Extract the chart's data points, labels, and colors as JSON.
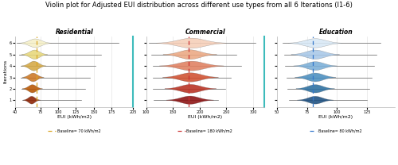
{
  "title": "Violin plot for Adjusted EUI distribution across different use types from all 6 Iterations (I1-6)",
  "title_fontsize": 6.0,
  "panels": [
    {
      "label": "Residential",
      "xlabel": "EUI (kWh/m2)",
      "baseline": 70,
      "baseline_label": "Baseline= 70 kWh/m2",
      "baseline_color": "#DAA520",
      "xlim": [
        40,
        205
      ],
      "xticks": [
        40,
        75,
        100,
        125,
        150,
        175,
        205
      ],
      "violin_colors": [
        "#F5F0C8",
        "#E8D87A",
        "#D4A843",
        "#CC7722",
        "#B85500",
        "#8B2000"
      ],
      "violin_centers": [
        68,
        67,
        66,
        65,
        64,
        63
      ],
      "violin_half_widths": [
        0.38,
        0.4,
        0.42,
        0.38,
        0.36,
        0.34
      ],
      "violin_spreads": [
        22,
        18,
        17,
        15,
        14,
        12
      ],
      "whisker_mins": [
        42,
        45,
        47,
        48,
        49,
        50
      ],
      "whisker_maxs": [
        185,
        160,
        152,
        145,
        138,
        132
      ]
    },
    {
      "label": "Commercial",
      "xlabel": "EUI (kWh/m2)",
      "baseline": 180,
      "baseline_label": "Baseline= 180 kWh/m2",
      "baseline_color": "#CC3333",
      "xlim": [
        100,
        320
      ],
      "xticks": [
        100,
        150,
        200,
        250,
        300
      ],
      "violin_colors": [
        "#F5CEB8",
        "#EBA882",
        "#E08060",
        "#D05030",
        "#B83020",
        "#8B1010"
      ],
      "violin_centers": [
        185,
        182,
        185,
        183,
        183,
        182
      ],
      "violin_half_widths": [
        0.44,
        0.42,
        0.42,
        0.4,
        0.38,
        0.36
      ],
      "violin_spreads": [
        65,
        50,
        60,
        52,
        48,
        44
      ],
      "whisker_mins": [
        105,
        110,
        112,
        112,
        113,
        114
      ],
      "whisker_maxs": [
        305,
        268,
        278,
        258,
        248,
        235
      ]
    },
    {
      "label": "Education",
      "xlabel": "EUI (kWh/m2)",
      "baseline": 80,
      "baseline_label": "Baseline= 80 kWh/m2",
      "baseline_color": "#3377CC",
      "xlim": [
        50,
        148
      ],
      "xticks": [
        50,
        75,
        100,
        125
      ],
      "violin_colors": [
        "#D8E8F5",
        "#A8C8E8",
        "#7AAED8",
        "#4A8EC0",
        "#2A6EA0",
        "#1A4E80"
      ],
      "violin_centers": [
        82,
        82,
        82,
        82,
        82,
        82
      ],
      "violin_half_widths": [
        0.4,
        0.4,
        0.38,
        0.38,
        0.36,
        0.34
      ],
      "violin_spreads": [
        22,
        20,
        18,
        17,
        16,
        15
      ],
      "whisker_mins": [
        55,
        56,
        57,
        58,
        59,
        60
      ],
      "whisker_maxs": [
        136,
        133,
        131,
        129,
        127,
        125
      ]
    }
  ],
  "ylabel": "Iterations",
  "n_iterations": 6,
  "panel_border_color": "#3DBBBB",
  "background_color": "#FFFFFF",
  "grid_color": "#DDDDDD"
}
